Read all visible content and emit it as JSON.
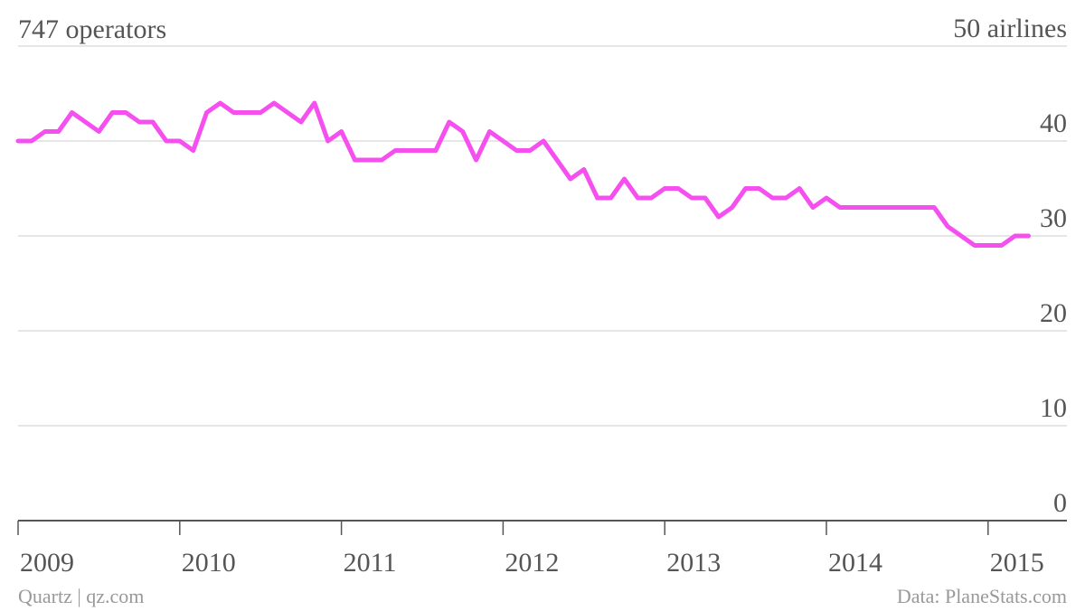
{
  "chart_data": {
    "type": "line",
    "title": "747 operators",
    "source": "Data: PlaneStats.com",
    "credit": "Quartz | qz.com",
    "categories": [
      "2009",
      null,
      null,
      null,
      null,
      null,
      null,
      null,
      null,
      null,
      null,
      null,
      "2010",
      null,
      null,
      null,
      null,
      null,
      null,
      null,
      null,
      null,
      null,
      null,
      "2011",
      null,
      null,
      null,
      null,
      null,
      null,
      null,
      null,
      null,
      null,
      null,
      "2012",
      null,
      null,
      null,
      null,
      null,
      null,
      null,
      null,
      null,
      null,
      null,
      "2013",
      null,
      null,
      null,
      null,
      null,
      null,
      null,
      null,
      null,
      null,
      null,
      "2014",
      null,
      null,
      null,
      null,
      null,
      null,
      null,
      null,
      null,
      null,
      null,
      "2015",
      null,
      null,
      null
    ],
    "values": [
      40,
      40,
      41,
      41,
      43,
      42,
      41,
      43,
      43,
      42,
      42,
      40,
      40,
      39,
      43,
      44,
      43,
      43,
      43,
      44,
      43,
      42,
      44,
      40,
      41,
      38,
      38,
      38,
      39,
      39,
      39,
      39,
      42,
      41,
      38,
      41,
      40,
      39,
      39,
      40,
      38,
      36,
      37,
      34,
      34,
      36,
      34,
      34,
      35,
      35,
      34,
      34,
      32,
      33,
      35,
      35,
      34,
      34,
      35,
      33,
      34,
      33,
      33,
      33,
      33,
      33,
      33,
      33,
      33,
      31,
      30,
      29,
      29,
      29,
      30,
      30
    ],
    "color": "#f64ff0",
    "ylim": [
      0,
      50
    ],
    "yticks": [
      0,
      10,
      20,
      30,
      40,
      {
        "value": 50,
        "label": "50 airlines"
      }
    ],
    "grid": true
  }
}
